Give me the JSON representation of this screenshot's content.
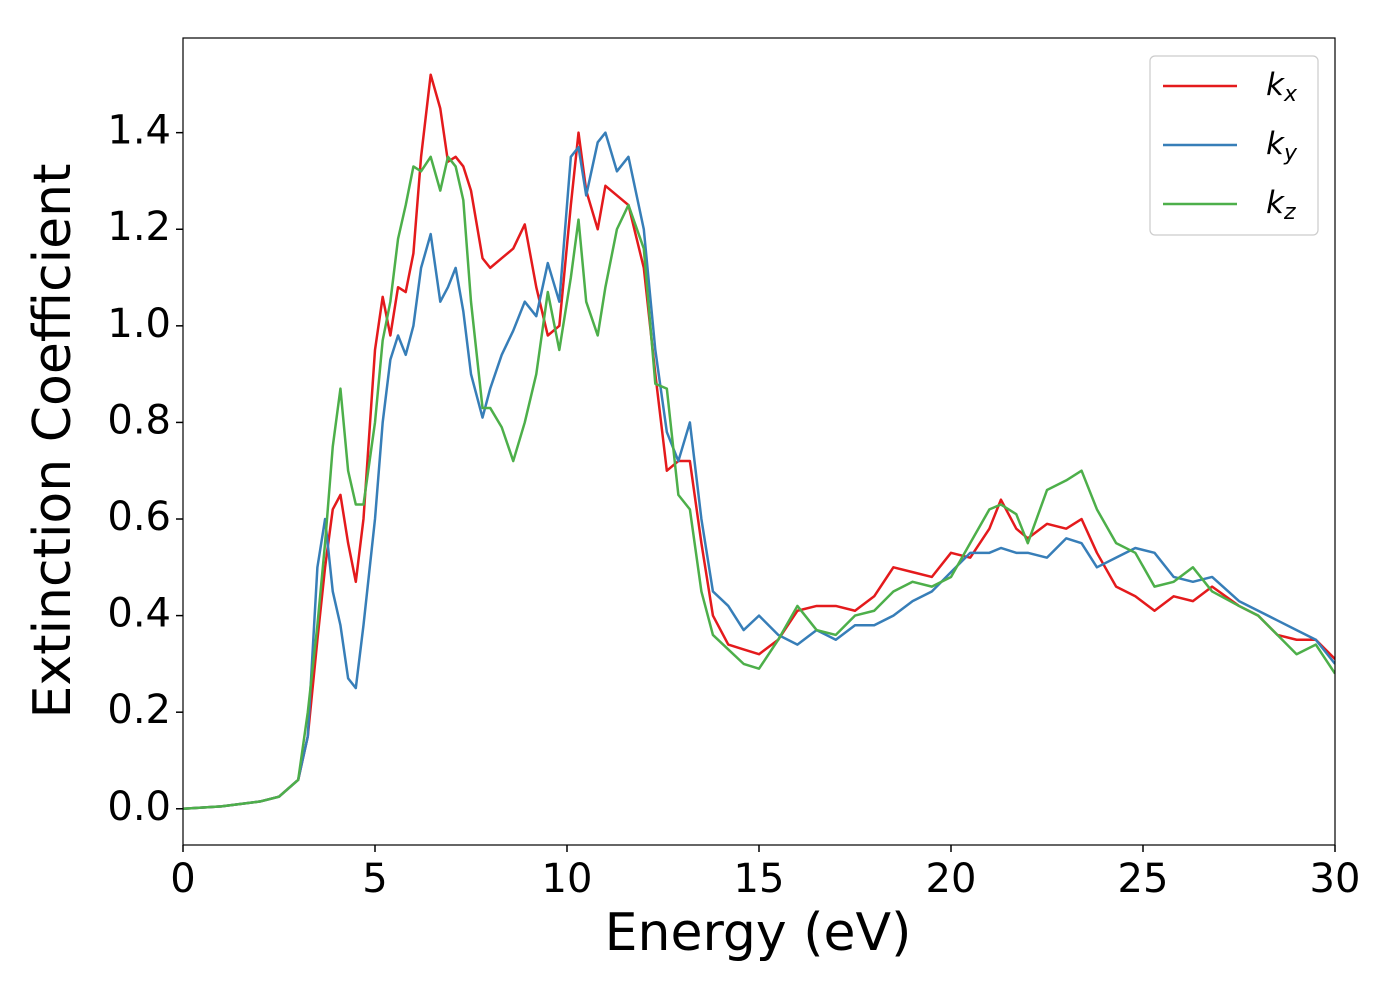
{
  "chart_data": {
    "type": "line",
    "xlabel": "Energy (eV)",
    "ylabel": "Extinction Coefficient",
    "x": [
      0,
      1,
      2,
      2.5,
      3,
      3.25,
      3.5,
      3.7,
      3.9,
      4.1,
      4.3,
      4.5,
      4.7,
      5,
      5.2,
      5.4,
      5.6,
      5.8,
      6,
      6.2,
      6.45,
      6.7,
      6.9,
      7.1,
      7.3,
      7.5,
      7.8,
      8,
      8.3,
      8.6,
      8.9,
      9.2,
      9.5,
      9.8,
      10.1,
      10.3,
      10.5,
      10.8,
      11,
      11.3,
      11.6,
      12,
      12.3,
      12.6,
      12.9,
      13.2,
      13.5,
      13.8,
      14.2,
      14.6,
      15,
      15.5,
      16,
      16.5,
      17,
      17.5,
      18,
      18.5,
      19,
      19.5,
      20,
      20.5,
      21,
      21.3,
      21.7,
      22,
      22.5,
      23,
      23.4,
      23.8,
      24.3,
      24.8,
      25.3,
      25.8,
      26.3,
      26.8,
      27.5,
      28,
      28.5,
      29,
      29.5,
      30
    ],
    "series": [
      {
        "name": "kx",
        "color": "#e41a1c",
        "values": [
          0,
          0.005,
          0.015,
          0.025,
          0.06,
          0.15,
          0.35,
          0.5,
          0.62,
          0.65,
          0.55,
          0.47,
          0.6,
          0.95,
          1.06,
          0.98,
          1.08,
          1.07,
          1.15,
          1.35,
          1.52,
          1.45,
          1.34,
          1.35,
          1.33,
          1.28,
          1.14,
          1.12,
          1.14,
          1.16,
          1.21,
          1.08,
          0.98,
          1.0,
          1.25,
          1.4,
          1.28,
          1.2,
          1.29,
          1.27,
          1.25,
          1.12,
          0.9,
          0.7,
          0.72,
          0.72,
          0.55,
          0.4,
          0.34,
          0.33,
          0.32,
          0.35,
          0.41,
          0.42,
          0.42,
          0.41,
          0.44,
          0.5,
          0.49,
          0.48,
          0.53,
          0.52,
          0.58,
          0.64,
          0.58,
          0.56,
          0.59,
          0.58,
          0.6,
          0.53,
          0.46,
          0.44,
          0.41,
          0.44,
          0.43,
          0.46,
          0.42,
          0.4,
          0.36,
          0.35,
          0.35,
          0.31
        ]
      },
      {
        "name": "ky",
        "color": "#377eb8",
        "values": [
          0,
          0.005,
          0.015,
          0.025,
          0.06,
          0.15,
          0.5,
          0.6,
          0.45,
          0.38,
          0.27,
          0.25,
          0.38,
          0.6,
          0.8,
          0.93,
          0.98,
          0.94,
          1.0,
          1.12,
          1.19,
          1.05,
          1.08,
          1.12,
          1.03,
          0.9,
          0.81,
          0.87,
          0.94,
          0.99,
          1.05,
          1.02,
          1.13,
          1.05,
          1.35,
          1.37,
          1.27,
          1.38,
          1.4,
          1.32,
          1.35,
          1.2,
          0.95,
          0.78,
          0.72,
          0.8,
          0.6,
          0.45,
          0.42,
          0.37,
          0.4,
          0.36,
          0.34,
          0.37,
          0.35,
          0.38,
          0.38,
          0.4,
          0.43,
          0.45,
          0.49,
          0.53,
          0.53,
          0.54,
          0.53,
          0.53,
          0.52,
          0.56,
          0.55,
          0.5,
          0.52,
          0.54,
          0.53,
          0.48,
          0.47,
          0.48,
          0.43,
          0.41,
          0.39,
          0.37,
          0.35,
          0.3
        ]
      },
      {
        "name": "kz",
        "color": "#4daf4a",
        "values": [
          0,
          0.005,
          0.015,
          0.025,
          0.06,
          0.2,
          0.38,
          0.55,
          0.75,
          0.87,
          0.7,
          0.63,
          0.63,
          0.8,
          0.97,
          1.05,
          1.18,
          1.25,
          1.33,
          1.32,
          1.35,
          1.28,
          1.35,
          1.33,
          1.26,
          1.05,
          0.83,
          0.83,
          0.79,
          0.72,
          0.8,
          0.9,
          1.07,
          0.95,
          1.1,
          1.22,
          1.05,
          0.98,
          1.08,
          1.2,
          1.25,
          1.16,
          0.88,
          0.87,
          0.65,
          0.62,
          0.45,
          0.36,
          0.33,
          0.3,
          0.29,
          0.35,
          0.42,
          0.37,
          0.36,
          0.4,
          0.41,
          0.45,
          0.47,
          0.46,
          0.48,
          0.55,
          0.62,
          0.63,
          0.61,
          0.55,
          0.66,
          0.68,
          0.7,
          0.62,
          0.55,
          0.53,
          0.46,
          0.47,
          0.5,
          0.45,
          0.42,
          0.4,
          0.36,
          0.32,
          0.34,
          0.28
        ]
      }
    ],
    "xlim": [
      0,
      30
    ],
    "xticks": [
      0,
      5,
      10,
      15,
      20,
      25,
      30
    ],
    "ylim": [
      -0.075,
      1.596
    ],
    "yticks": [
      {
        "value": 0,
        "label": "0.0"
      },
      0.2,
      0.4,
      0.6,
      0.8,
      {
        "value": 1,
        "label": "1.0"
      },
      1.2,
      1.4
    ],
    "legend": "upper right",
    "grid": false
  }
}
